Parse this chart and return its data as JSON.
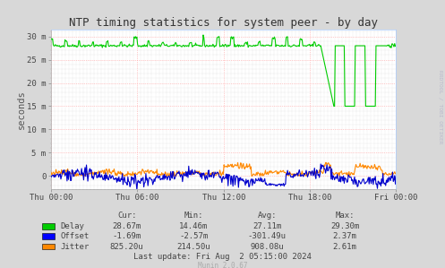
{
  "title": "NTP timing statistics for system peer - by day",
  "ylabel": "seconds",
  "background_color": "#d8d8d8",
  "plot_bg_color": "#ffffff",
  "grid_color_major": "#ff9999",
  "grid_color_minor": "#cccccc",
  "ylim": [
    -0.0028,
    0.0315
  ],
  "yticks": [
    0,
    0.005,
    0.01,
    0.015,
    0.02,
    0.025,
    0.03
  ],
  "ytick_labels": [
    "0",
    "5 m",
    "10 m",
    "15 m",
    "20 m",
    "25 m",
    "30 m"
  ],
  "xtick_labels": [
    "Thu 00:00",
    "Thu 06:00",
    "Thu 12:00",
    "Thu 18:00",
    "Fri 00:00"
  ],
  "watermark": "RRDTOOL / TOBI OETIKER",
  "munin_version": "Munin 2.0.67",
  "legend_entries": [
    "Delay",
    "Offset",
    "Jitter"
  ],
  "legend_colors": [
    "#00cc00",
    "#0000ff",
    "#ff8800"
  ],
  "stats_header": [
    "Cur:",
    "Min:",
    "Avg:",
    "Max:"
  ],
  "stats": [
    [
      "28.67m",
      "14.46m",
      "27.11m",
      "29.30m"
    ],
    [
      "-1.69m",
      "-2.57m",
      "-301.49u",
      "2.37m"
    ],
    [
      "825.20u",
      "214.50u",
      "908.08u",
      "2.61m"
    ]
  ],
  "last_update": "Last update: Fri Aug  2 05:15:00 2024",
  "delay_color": "#00cc00",
  "offset_color": "#0000cc",
  "jitter_color": "#ff8800"
}
